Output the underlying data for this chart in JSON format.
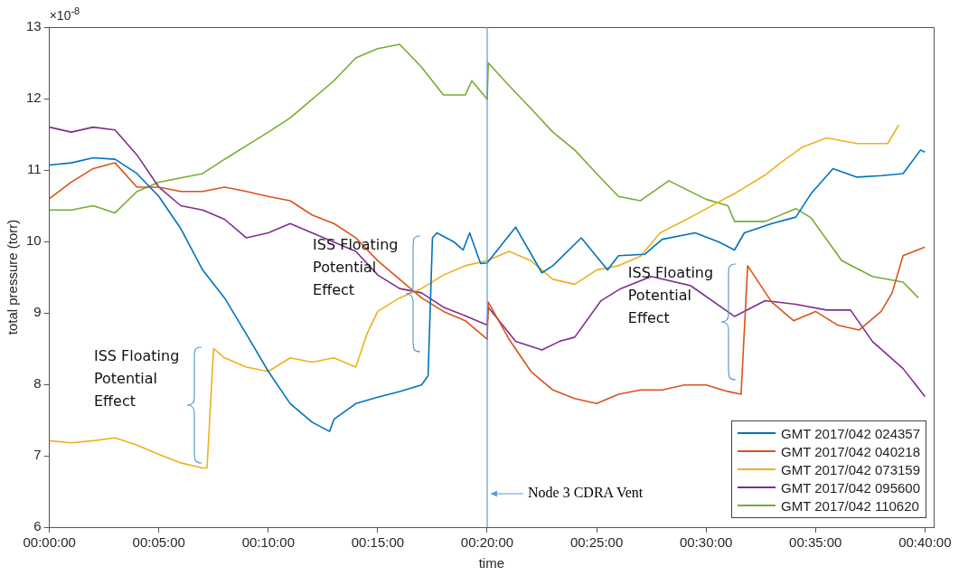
{
  "chart_data": {
    "type": "line",
    "xlabel": "time",
    "ylabel": "total pressure (torr)",
    "xlim": [
      0,
      40.4
    ],
    "ylim": [
      6,
      13
    ],
    "xticks": [
      {
        "value": 0,
        "label": "00:00:00"
      },
      {
        "value": 5,
        "label": "00:05:00"
      },
      {
        "value": 10,
        "label": "00:10:00"
      },
      {
        "value": 15,
        "label": "00:15:00"
      },
      {
        "value": 20,
        "label": "00:20:00"
      },
      {
        "value": 25,
        "label": "00:25:00"
      },
      {
        "value": 30,
        "label": "00:30:00"
      },
      {
        "value": 35,
        "label": "00:35:00"
      },
      {
        "value": 40,
        "label": "00:40:00"
      }
    ],
    "yticks": [
      6,
      7,
      8,
      9,
      10,
      11,
      12,
      13
    ],
    "grid": false,
    "legend": "bottom right",
    "marker": "none",
    "line_style": "solid",
    "series": [
      {
        "name": "GMT 2017/042 024357",
        "color": "#0072bd",
        "x": [
          0,
          1,
          2,
          3,
          4,
          5,
          6,
          7,
          8,
          9,
          10,
          11,
          12,
          12.8,
          13,
          14,
          15,
          16,
          17,
          17.3,
          17.5,
          17.7,
          18.5,
          18.9,
          19.2,
          19.7,
          20,
          21.3,
          22.5,
          23,
          24.3,
          25.5,
          26,
          27.2,
          28,
          29.5,
          30.6,
          31.3,
          31.75,
          33,
          34.1,
          34.8,
          35.8,
          36.9,
          38,
          39,
          39.8,
          40
        ],
        "values": [
          11.07,
          11.1,
          11.17,
          11.15,
          10.95,
          10.63,
          10.18,
          9.6,
          9.21,
          8.7,
          8.18,
          7.73,
          7.47,
          7.34,
          7.51,
          7.73,
          7.82,
          7.9,
          7.99,
          8.12,
          10.05,
          10.12,
          9.99,
          9.88,
          10.12,
          9.69,
          9.7,
          10.2,
          9.56,
          9.66,
          10.05,
          9.6,
          9.8,
          9.82,
          10.03,
          10.12,
          9.99,
          9.88,
          10.12,
          10.25,
          10.34,
          10.67,
          11.02,
          10.9,
          10.92,
          10.95,
          11.28,
          11.25
        ]
      },
      {
        "name": "GMT 2017/042 040218",
        "color": "#d95319",
        "x": [
          0,
          1,
          2,
          3,
          4,
          5,
          6,
          7,
          8,
          9,
          10,
          11,
          12,
          13,
          14,
          15,
          16,
          17,
          18,
          19,
          20,
          20.05,
          21,
          22,
          23,
          24,
          25,
          26,
          27,
          28,
          29,
          30,
          31,
          31.6,
          31.9,
          33,
          34,
          35,
          36,
          37,
          38,
          38.5,
          39,
          40
        ],
        "values": [
          10.6,
          10.83,
          11.02,
          11.1,
          10.76,
          10.76,
          10.7,
          10.7,
          10.76,
          10.7,
          10.63,
          10.57,
          10.37,
          10.25,
          10.05,
          9.73,
          9.47,
          9.21,
          9.02,
          8.89,
          8.63,
          9.15,
          8.63,
          8.18,
          7.92,
          7.8,
          7.73,
          7.86,
          7.92,
          7.92,
          7.99,
          7.99,
          7.9,
          7.86,
          9.66,
          9.15,
          8.89,
          9.02,
          8.83,
          8.76,
          9.02,
          9.28,
          9.8,
          9.92
        ]
      },
      {
        "name": "GMT 2017/042 073159",
        "color": "#edb120",
        "x": [
          0,
          1,
          2,
          3,
          4,
          5,
          6,
          7,
          7.2,
          7.5,
          8,
          9,
          10,
          11,
          12,
          13,
          14,
          14.5,
          15,
          16,
          17,
          18,
          19,
          20,
          21,
          22,
          23,
          24,
          25,
          26,
          27,
          27.9,
          29.3,
          31.3,
          32.7,
          33.4,
          34.4,
          35.5,
          36.9,
          38.3,
          38.8
        ],
        "values": [
          7.21,
          7.18,
          7.21,
          7.25,
          7.15,
          7.02,
          6.9,
          6.83,
          6.83,
          8.5,
          8.37,
          8.24,
          8.18,
          8.37,
          8.31,
          8.37,
          8.24,
          8.7,
          9.02,
          9.21,
          9.34,
          9.53,
          9.66,
          9.73,
          9.86,
          9.73,
          9.47,
          9.4,
          9.6,
          9.66,
          9.79,
          10.12,
          10.34,
          10.67,
          10.93,
          11.1,
          11.32,
          11.45,
          11.37,
          11.37,
          11.63
        ]
      },
      {
        "name": "GMT 2017/042 095600",
        "color": "#7e2f8e",
        "x": [
          0,
          1,
          2,
          3,
          4,
          5,
          6,
          7,
          8,
          9,
          10,
          11,
          12,
          13,
          14,
          15,
          16,
          17,
          18,
          19,
          20,
          20.05,
          21.3,
          22.5,
          23.3,
          24,
          25.2,
          26.1,
          27.5,
          29.3,
          31.3,
          32.7,
          34.1,
          35.5,
          36.6,
          37.6,
          39,
          40
        ],
        "values": [
          11.6,
          11.53,
          11.6,
          11.56,
          11.21,
          10.76,
          10.5,
          10.44,
          10.31,
          10.05,
          10.12,
          10.25,
          10.12,
          9.99,
          9.86,
          9.53,
          9.34,
          9.28,
          9.08,
          8.96,
          8.83,
          9.08,
          8.6,
          8.48,
          8.6,
          8.66,
          9.17,
          9.34,
          9.51,
          9.38,
          8.95,
          9.17,
          9.12,
          9.04,
          9.04,
          8.6,
          8.22,
          7.83
        ]
      },
      {
        "name": "GMT 2017/042 110620",
        "color": "#77ac30",
        "x": [
          0,
          1,
          2,
          3,
          4,
          5,
          6,
          7,
          8,
          9,
          10,
          11,
          12,
          13,
          14,
          15,
          16,
          17,
          18,
          19,
          19.3,
          20,
          20.05,
          21,
          22,
          23,
          24,
          25,
          26,
          27,
          28.3,
          30,
          31,
          31.3,
          32.7,
          34.1,
          34.8,
          36.2,
          37.6,
          39,
          39.7
        ],
        "values": [
          10.44,
          10.44,
          10.5,
          10.4,
          10.7,
          10.83,
          10.89,
          10.95,
          11.15,
          11.34,
          11.53,
          11.73,
          11.99,
          12.25,
          12.57,
          12.7,
          12.76,
          12.44,
          12.05,
          12.05,
          12.25,
          11.99,
          12.5,
          12.18,
          11.86,
          11.53,
          11.28,
          10.95,
          10.63,
          10.57,
          10.85,
          10.59,
          10.5,
          10.28,
          10.28,
          10.46,
          10.33,
          9.73,
          9.51,
          9.43,
          9.21
        ]
      }
    ],
    "ref_lines": [
      {
        "axis": "x",
        "value": 20,
        "label": "Node 3 CDRA Vent",
        "color": "#5b9bd5"
      }
    ],
    "annotations": [
      "×10$^{-8}$",
      {
        "text": "ISS Floating Potential Effect",
        "x": 7.5,
        "y": 8.5
      },
      {
        "text": "ISS Floating Potential Effect",
        "x": 17.5,
        "y": 10.05
      },
      {
        "text": "ISS Floating Potential Effect",
        "x": 31.9,
        "y": 9.66
      }
    ]
  }
}
